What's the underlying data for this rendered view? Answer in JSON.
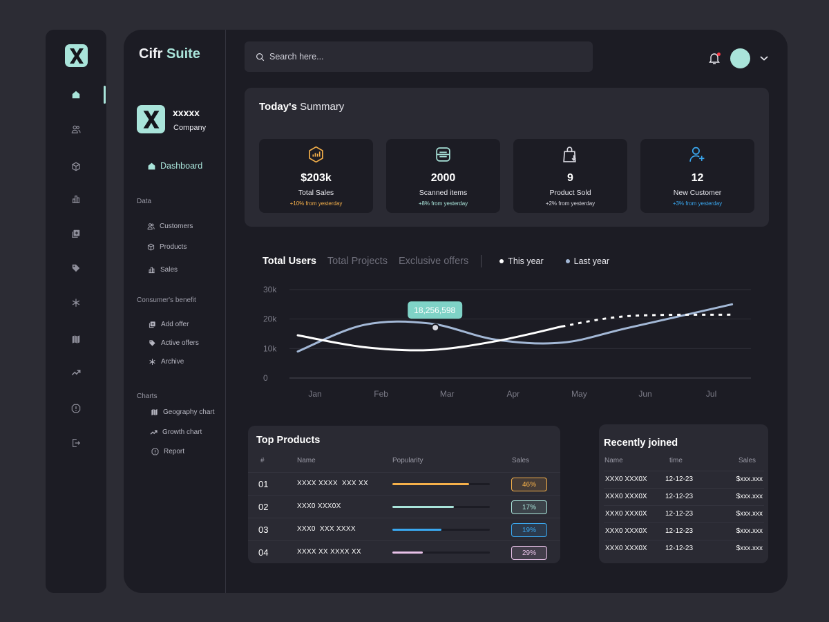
{
  "brand": {
    "name": "Cifr",
    "accent": "Suite",
    "logo_letter": "X"
  },
  "rail": {
    "icons": [
      "home-icon",
      "users-icon",
      "box-icon",
      "bar-chart-icon",
      "add-offer-icon",
      "tag-icon",
      "archive-icon",
      "map-icon",
      "trend-icon",
      "report-icon",
      "logout-icon"
    ],
    "active": "home-icon"
  },
  "company": {
    "name": "xxxxx",
    "sub": "Company",
    "logo_letter": "X"
  },
  "sidebar": {
    "dashboard": "Dashboard",
    "sections": [
      {
        "label": "Data",
        "items": [
          {
            "label": "Customers",
            "icon": "users-icon"
          },
          {
            "label": "Products",
            "icon": "box-icon"
          },
          {
            "label": "Sales",
            "icon": "bar-chart-icon"
          }
        ]
      },
      {
        "label": "Consumer's benefit",
        "items": [
          {
            "label": "Add offer",
            "icon": "add-offer-icon"
          },
          {
            "label": "Active offers",
            "icon": "tag-icon"
          },
          {
            "label": "Archive",
            "icon": "archive-icon"
          }
        ]
      },
      {
        "label": "Charts",
        "items": [
          {
            "label": "Geography chart",
            "icon": "map-icon"
          },
          {
            "label": "Growth chart",
            "icon": "trend-icon"
          },
          {
            "label": "Report",
            "icon": "report-icon"
          }
        ]
      }
    ]
  },
  "search": {
    "placeholder": "Search here..."
  },
  "summary": {
    "title_bold": "Today's",
    "title_rest": " Summary",
    "cards": [
      {
        "icon": "sales-chart-icon",
        "value": "$203k",
        "label": "Total Sales",
        "change": "+10% from yesterday",
        "color": "#f5b04a"
      },
      {
        "icon": "scanner-icon",
        "value": "2000",
        "label": "Scanned items",
        "change": "+8% from yesterday",
        "color": "#a9e4da"
      },
      {
        "icon": "shopping-bag-icon",
        "value": "9",
        "label": "Product Sold",
        "change": "+2% from yesterday",
        "color": "#d8d8e0"
      },
      {
        "icon": "add-user-icon",
        "value": "12",
        "label": "New Customer",
        "change": "+3% from yesterday",
        "color": "#3aa8f0"
      }
    ]
  },
  "chart_tabs": [
    "Total Users",
    "Total Projects",
    "Exclusive offers"
  ],
  "chart_data": {
    "type": "line",
    "categories": [
      "Jan",
      "Feb",
      "Mar",
      "Apr",
      "May",
      "Jun",
      "Jul"
    ],
    "ylim": [
      0,
      30000
    ],
    "yticks": [
      0,
      10000,
      20000,
      30000
    ],
    "ytick_labels": [
      "0",
      "10k",
      "20k",
      "30k"
    ],
    "grid": true,
    "legend_position": "top",
    "series": [
      {
        "name": "This year",
        "color": "#ffffff",
        "values": [
          14500,
          10500,
          9500,
          12500,
          17500,
          21000,
          21500
        ],
        "solid_until_index": 4
      },
      {
        "name": "Last year",
        "color": "#a3b8d6",
        "values": [
          9000,
          18000,
          18500,
          13000,
          12000,
          17000,
          25000
        ]
      }
    ],
    "tooltip": {
      "label": "18,256,598",
      "category": "Mar"
    }
  },
  "top_products": {
    "title": "Top Products",
    "columns": [
      "#",
      "Name",
      "Popularity",
      "Sales"
    ],
    "rows": [
      {
        "num": "01",
        "name": "XXXX XXXX  XXX XX",
        "popularity": 0.79,
        "sales": "46%",
        "color": "#f5b04a"
      },
      {
        "num": "02",
        "name": "XXX0 XXX0X",
        "popularity": 0.63,
        "sales": "17%",
        "color": "#a9e4da"
      },
      {
        "num": "03",
        "name": "XXX0  XXX XXXX",
        "popularity": 0.5,
        "sales": "19%",
        "color": "#3aa8f0"
      },
      {
        "num": "04",
        "name": "XXXX XX XXXX XX",
        "popularity": 0.31,
        "sales": "29%",
        "color": "#e8c1e8"
      }
    ]
  },
  "recent": {
    "title": "Recently joined",
    "columns": [
      "Name",
      "time",
      "Sales"
    ],
    "rows": [
      {
        "name": "XXX0 XXX0X",
        "time": "12-12-23",
        "sales": "$xxx.xxx"
      },
      {
        "name": "XXX0 XXX0X",
        "time": "12-12-23",
        "sales": "$xxx.xxx"
      },
      {
        "name": "XXX0 XXX0X",
        "time": "12-12-23",
        "sales": "$xxx.xxx"
      },
      {
        "name": "XXX0 XXX0X",
        "time": "12-12-23",
        "sales": "$xxx.xxx"
      },
      {
        "name": "XXX0 XXX0X",
        "time": "12-12-23",
        "sales": "$xxx.xxx"
      }
    ]
  }
}
